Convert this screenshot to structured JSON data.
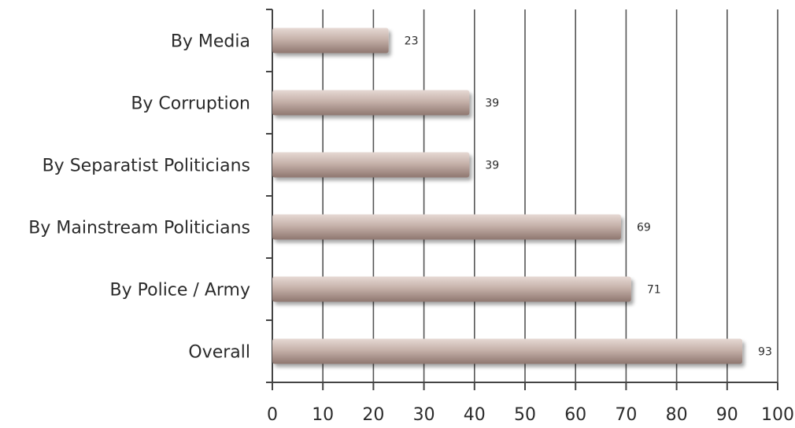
{
  "chart_data": {
    "type": "bar",
    "orientation": "horizontal",
    "categories": [
      "By Media",
      "By Corruption",
      "By Separatist Politicians",
      "By Mainstream Politicians",
      "By Police / Army",
      "Overall"
    ],
    "values": [
      23,
      39,
      39,
      69,
      71,
      93
    ],
    "data_labels": [
      "23",
      "39",
      "39",
      "69",
      "71",
      "93"
    ],
    "xlim": [
      0,
      100
    ],
    "x_ticks": [
      0,
      10,
      20,
      30,
      40,
      50,
      60,
      70,
      80,
      90,
      100
    ],
    "x_tick_labels": [
      "0",
      "10",
      "20",
      "30",
      "40",
      "50",
      "60",
      "70",
      "80",
      "90",
      "100"
    ],
    "title": "",
    "xlabel": "",
    "ylabel": "",
    "grid": "vertical",
    "legend": "none",
    "colors": {
      "bar_light": "#e6d9d4",
      "bar_mid": "#c6b2aa",
      "bar_dark": "#8f7770",
      "gridline": "#555555",
      "text": "#2b2b2b"
    }
  }
}
